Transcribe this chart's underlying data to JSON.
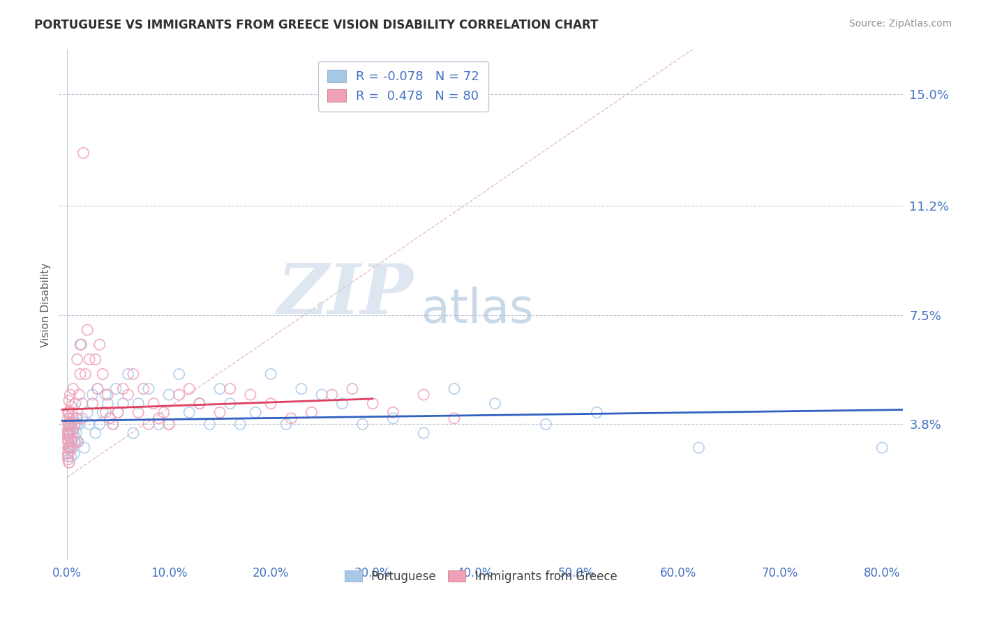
{
  "title": "PORTUGUESE VS IMMIGRANTS FROM GREECE VISION DISABILITY CORRELATION CHART",
  "source": "Source: ZipAtlas.com",
  "ylabel": "Vision Disability",
  "xlim": [
    -0.008,
    0.82
  ],
  "ylim": [
    -0.008,
    0.165
  ],
  "yticks": [
    0.0,
    0.038,
    0.075,
    0.112,
    0.15
  ],
  "ytick_labels": [
    "",
    "3.8%",
    "7.5%",
    "11.2%",
    "15.0%"
  ],
  "xticks": [
    0.0,
    0.1,
    0.2,
    0.3,
    0.4,
    0.5,
    0.6,
    0.7,
    0.8
  ],
  "xtick_labels": [
    "0.0%",
    "10.0%",
    "20.0%",
    "30.0%",
    "40.0%",
    "50.0%",
    "60.0%",
    "70.0%",
    "80.0%"
  ],
  "blue_color": "#A8C8E8",
  "pink_color": "#F0A0B8",
  "trend_blue": "#3060C0",
  "trend_pink": "#E04060",
  "diag_color": "#E0A0B0",
  "legend_R1": "-0.078",
  "legend_N1": "72",
  "legend_R2": "0.478",
  "legend_N2": "80",
  "title_color": "#303030",
  "axis_label_color": "#4472C4",
  "tick_color": "#4472C4",
  "watermark_zip": "ZIP",
  "watermark_atlas": "atlas",
  "watermark_color_zip": "#C8D8E8",
  "watermark_color_atlas": "#A8C0D8",
  "portuguese_x": [
    0.001,
    0.001,
    0.001,
    0.002,
    0.002,
    0.002,
    0.002,
    0.003,
    0.003,
    0.003,
    0.003,
    0.004,
    0.004,
    0.005,
    0.005,
    0.005,
    0.006,
    0.006,
    0.007,
    0.007,
    0.008,
    0.008,
    0.009,
    0.01,
    0.01,
    0.011,
    0.012,
    0.013,
    0.015,
    0.017,
    0.02,
    0.022,
    0.025,
    0.028,
    0.03,
    0.032,
    0.035,
    0.038,
    0.04,
    0.042,
    0.045,
    0.048,
    0.05,
    0.055,
    0.06,
    0.065,
    0.07,
    0.08,
    0.09,
    0.1,
    0.11,
    0.12,
    0.13,
    0.14,
    0.15,
    0.16,
    0.17,
    0.185,
    0.2,
    0.215,
    0.23,
    0.25,
    0.27,
    0.29,
    0.32,
    0.35,
    0.38,
    0.42,
    0.47,
    0.52,
    0.62,
    0.8
  ],
  "portuguese_y": [
    0.032,
    0.036,
    0.028,
    0.03,
    0.034,
    0.038,
    0.025,
    0.031,
    0.035,
    0.029,
    0.038,
    0.033,
    0.027,
    0.032,
    0.036,
    0.03,
    0.035,
    0.04,
    0.028,
    0.034,
    0.038,
    0.032,
    0.035,
    0.038,
    0.04,
    0.032,
    0.038,
    0.065,
    0.045,
    0.03,
    0.042,
    0.038,
    0.048,
    0.035,
    0.05,
    0.038,
    0.042,
    0.048,
    0.045,
    0.04,
    0.038,
    0.05,
    0.042,
    0.045,
    0.055,
    0.035,
    0.045,
    0.05,
    0.038,
    0.048,
    0.055,
    0.042,
    0.045,
    0.038,
    0.05,
    0.045,
    0.038,
    0.042,
    0.055,
    0.038,
    0.05,
    0.048,
    0.045,
    0.038,
    0.04,
    0.035,
    0.05,
    0.045,
    0.038,
    0.042,
    0.03,
    0.03
  ],
  "greece_x": [
    0.001,
    0.001,
    0.001,
    0.001,
    0.001,
    0.001,
    0.001,
    0.001,
    0.001,
    0.001,
    0.001,
    0.001,
    0.002,
    0.002,
    0.002,
    0.002,
    0.002,
    0.002,
    0.002,
    0.003,
    0.003,
    0.003,
    0.003,
    0.004,
    0.004,
    0.004,
    0.005,
    0.005,
    0.006,
    0.006,
    0.007,
    0.007,
    0.008,
    0.009,
    0.01,
    0.01,
    0.012,
    0.013,
    0.014,
    0.015,
    0.016,
    0.018,
    0.02,
    0.022,
    0.025,
    0.028,
    0.03,
    0.032,
    0.035,
    0.038,
    0.04,
    0.042,
    0.045,
    0.05,
    0.055,
    0.06,
    0.065,
    0.07,
    0.075,
    0.08,
    0.085,
    0.09,
    0.095,
    0.1,
    0.11,
    0.12,
    0.13,
    0.15,
    0.16,
    0.18,
    0.2,
    0.22,
    0.24,
    0.26,
    0.28,
    0.3,
    0.32,
    0.35,
    0.38,
    0.1
  ],
  "greece_y": [
    0.03,
    0.032,
    0.034,
    0.036,
    0.028,
    0.038,
    0.026,
    0.04,
    0.035,
    0.042,
    0.033,
    0.027,
    0.03,
    0.034,
    0.038,
    0.042,
    0.025,
    0.046,
    0.035,
    0.03,
    0.04,
    0.035,
    0.048,
    0.032,
    0.038,
    0.044,
    0.03,
    0.042,
    0.036,
    0.05,
    0.032,
    0.038,
    0.045,
    0.04,
    0.032,
    0.06,
    0.048,
    0.055,
    0.065,
    0.04,
    0.13,
    0.055,
    0.07,
    0.06,
    0.045,
    0.06,
    0.05,
    0.065,
    0.055,
    0.042,
    0.048,
    0.04,
    0.038,
    0.042,
    0.05,
    0.048,
    0.055,
    0.042,
    0.05,
    0.038,
    0.045,
    0.04,
    0.042,
    0.038,
    0.048,
    0.05,
    0.045,
    0.042,
    0.05,
    0.048,
    0.045,
    0.04,
    0.042,
    0.048,
    0.05,
    0.045,
    0.042,
    0.048,
    0.04,
    0.038
  ]
}
